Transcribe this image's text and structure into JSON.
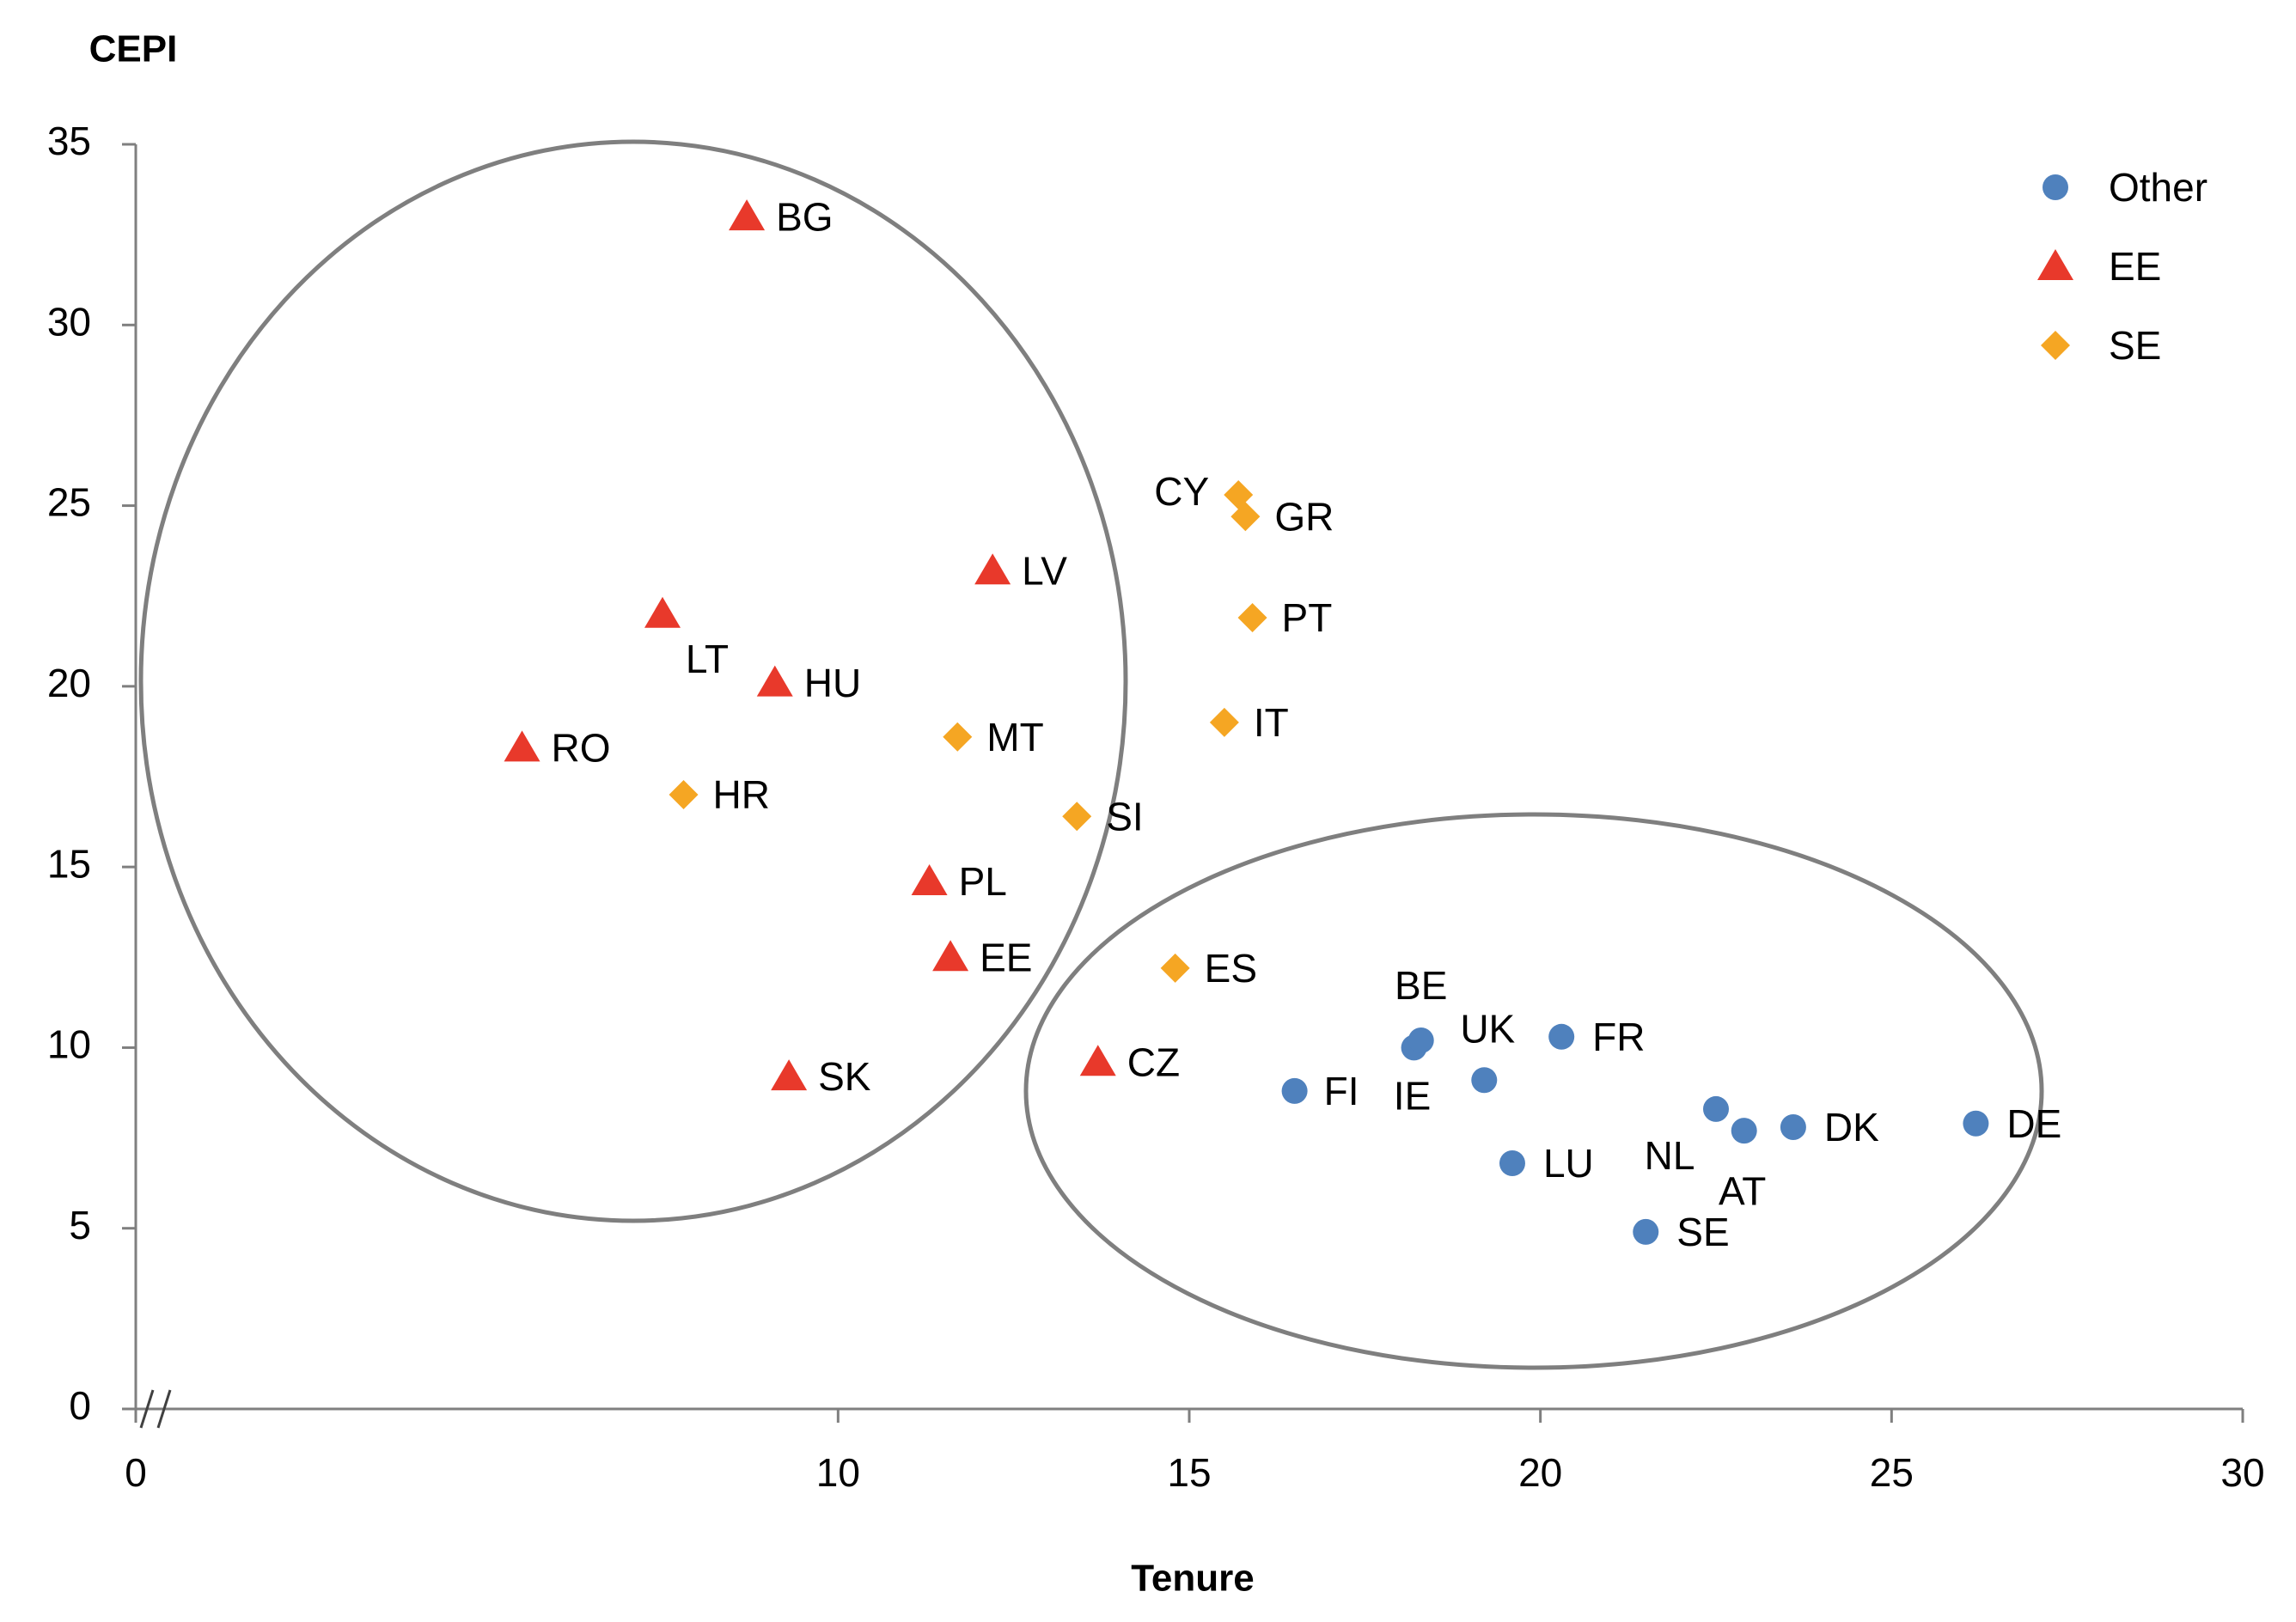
{
  "chart_data": {
    "type": "scatter",
    "title": "",
    "xlabel": "Tenure",
    "ylabel": "CEPI",
    "xlim": [
      0,
      30
    ],
    "ylim": [
      0,
      35
    ],
    "x_ticks": [
      0,
      10,
      15,
      20,
      25,
      30
    ],
    "y_ticks": [
      0,
      5,
      10,
      15,
      20,
      25,
      30,
      35
    ],
    "axis_break": "//",
    "grid": false,
    "legend_position": "top-right",
    "series": [
      {
        "name": "Other",
        "marker": "circle",
        "color": "#4F81BD",
        "points": [
          {
            "label": "FI",
            "x": 16.5,
            "y": 8.8
          },
          {
            "label": "IE",
            "x": 18.2,
            "y": 10.0
          },
          {
            "label": "BE",
            "x": 18.3,
            "y": 10.2
          },
          {
            "label": "UK",
            "x": 19.2,
            "y": 9.1
          },
          {
            "label": "FR",
            "x": 20.3,
            "y": 10.3
          },
          {
            "label": "LU",
            "x": 19.6,
            "y": 6.8
          },
          {
            "label": "NL",
            "x": 22.5,
            "y": 8.3
          },
          {
            "label": "AT",
            "x": 22.9,
            "y": 7.7
          },
          {
            "label": "DK",
            "x": 23.6,
            "y": 7.8
          },
          {
            "label": "SE",
            "x": 21.5,
            "y": 4.9
          },
          {
            "label": "DE",
            "x": 26.2,
            "y": 7.9
          }
        ]
      },
      {
        "name": "EE",
        "marker": "triangle",
        "color": "#E8392B",
        "points": [
          {
            "label": "BG",
            "x": 8.7,
            "y": 33.0
          },
          {
            "label": "LV",
            "x": 12.2,
            "y": 23.2
          },
          {
            "label": "LT",
            "x": 7.5,
            "y": 22.0
          },
          {
            "label": "HU",
            "x": 9.1,
            "y": 20.1
          },
          {
            "label": "RO",
            "x": 5.5,
            "y": 18.3
          },
          {
            "label": "PL",
            "x": 11.3,
            "y": 14.6
          },
          {
            "label": "EE",
            "x": 11.6,
            "y": 12.5
          },
          {
            "label": "SK",
            "x": 9.3,
            "y": 9.2
          },
          {
            "label": "CZ",
            "x": 13.7,
            "y": 9.6
          }
        ]
      },
      {
        "name": "SE",
        "marker": "diamond",
        "color": "#F5A623",
        "points": [
          {
            "label": "CY",
            "x": 15.7,
            "y": 25.3
          },
          {
            "label": "GR",
            "x": 15.8,
            "y": 24.7
          },
          {
            "label": "PT",
            "x": 15.9,
            "y": 21.9
          },
          {
            "label": "IT",
            "x": 15.5,
            "y": 19.0
          },
          {
            "label": "MT",
            "x": 11.7,
            "y": 18.6
          },
          {
            "label": "HR",
            "x": 7.8,
            "y": 17.0
          },
          {
            "label": "SI",
            "x": 13.4,
            "y": 16.4
          },
          {
            "label": "ES",
            "x": 14.8,
            "y": 12.2
          }
        ]
      }
    ]
  }
}
